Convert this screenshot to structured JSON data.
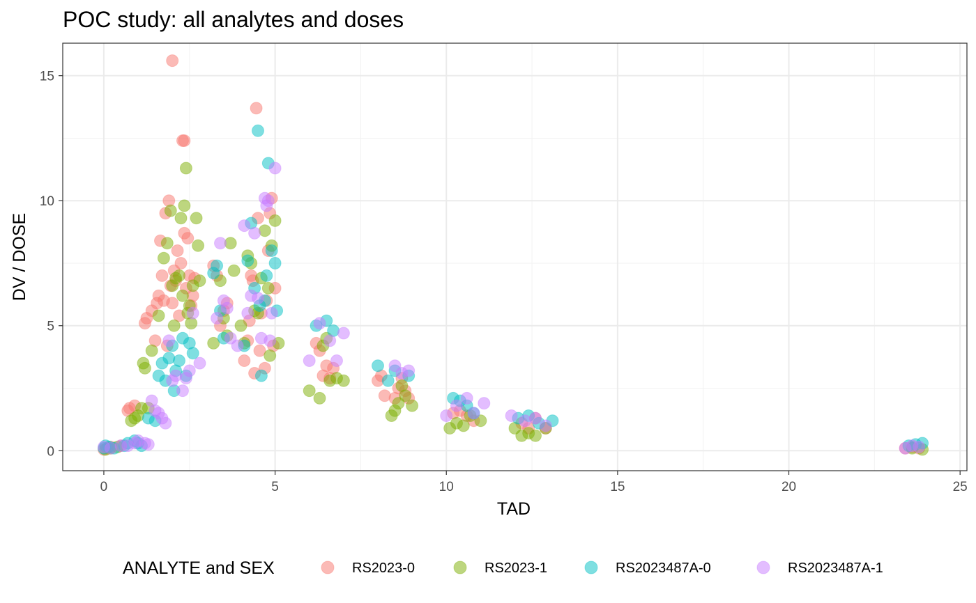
{
  "chart_data": {
    "type": "scatter",
    "title": "POC study: all analytes and doses",
    "xlabel": "TAD",
    "ylabel": "DV / DOSE",
    "xlim": [
      -1.2,
      25.2
    ],
    "ylim": [
      -0.8,
      16.3
    ],
    "x_ticks": [
      0,
      5,
      10,
      15,
      20,
      25
    ],
    "x_tick_labels": [
      "0",
      "5",
      "10",
      "15",
      "20",
      "25"
    ],
    "y_ticks": [
      0,
      5,
      10,
      15
    ],
    "y_tick_labels": [
      "0",
      "5",
      "10",
      "15"
    ],
    "grid": true,
    "legend": {
      "title": "ANALYTE and SEX",
      "position": "bottom"
    },
    "series": [
      {
        "name": "RS2023-0",
        "color": "#F8766D",
        "points": [
          [
            0.0,
            0.05
          ],
          [
            0.1,
            0.1
          ],
          [
            0.2,
            0.15
          ],
          [
            0.5,
            0.2
          ],
          [
            0.7,
            1.6
          ],
          [
            0.75,
            1.7
          ],
          [
            0.9,
            1.8
          ],
          [
            1.2,
            5.1
          ],
          [
            1.25,
            5.3
          ],
          [
            1.4,
            5.6
          ],
          [
            1.5,
            4.4
          ],
          [
            1.55,
            5.9
          ],
          [
            1.6,
            6.2
          ],
          [
            1.65,
            8.4
          ],
          [
            1.7,
            7.0
          ],
          [
            1.75,
            6.0
          ],
          [
            1.8,
            9.5
          ],
          [
            1.85,
            4.2
          ],
          [
            1.9,
            10.0
          ],
          [
            1.95,
            6.6
          ],
          [
            2.0,
            5.9
          ],
          [
            2.0,
            15.6
          ],
          [
            2.05,
            7.2
          ],
          [
            2.1,
            6.8
          ],
          [
            2.15,
            8.0
          ],
          [
            2.2,
            5.4
          ],
          [
            2.25,
            7.5
          ],
          [
            2.3,
            12.4
          ],
          [
            2.35,
            12.4
          ],
          [
            2.35,
            8.7
          ],
          [
            2.4,
            6.5
          ],
          [
            2.45,
            8.5
          ],
          [
            2.5,
            7.0
          ],
          [
            2.55,
            5.8
          ],
          [
            2.6,
            6.2
          ],
          [
            2.65,
            6.9
          ],
          [
            3.2,
            7.4
          ],
          [
            3.3,
            7.0
          ],
          [
            3.4,
            5.0
          ],
          [
            3.5,
            5.6
          ],
          [
            3.6,
            5.9
          ],
          [
            4.1,
            3.6
          ],
          [
            4.2,
            4.4
          ],
          [
            4.25,
            5.2
          ],
          [
            4.3,
            7.0
          ],
          [
            4.35,
            6.8
          ],
          [
            4.4,
            3.1
          ],
          [
            4.45,
            13.7
          ],
          [
            4.5,
            9.3
          ],
          [
            4.55,
            4.0
          ],
          [
            4.6,
            5.5
          ],
          [
            4.7,
            3.3
          ],
          [
            4.75,
            6.0
          ],
          [
            4.8,
            8.0
          ],
          [
            4.85,
            9.5
          ],
          [
            4.9,
            10.1
          ],
          [
            4.95,
            4.2
          ],
          [
            5.0,
            6.5
          ],
          [
            6.2,
            4.3
          ],
          [
            6.3,
            4.0
          ],
          [
            6.4,
            3.0
          ],
          [
            6.5,
            3.4
          ],
          [
            6.6,
            2.9
          ],
          [
            6.7,
            3.3
          ],
          [
            8.0,
            2.8
          ],
          [
            8.1,
            3.0
          ],
          [
            8.2,
            2.2
          ],
          [
            8.5,
            2.1
          ],
          [
            8.6,
            2.5
          ],
          [
            8.7,
            2.9
          ],
          [
            8.8,
            2.4
          ],
          [
            8.9,
            2.1
          ],
          [
            10.2,
            1.5
          ],
          [
            10.4,
            1.6
          ],
          [
            10.6,
            1.4
          ],
          [
            10.8,
            1.2
          ],
          [
            12.2,
            1.1
          ],
          [
            12.4,
            0.9
          ],
          [
            12.6,
            1.3
          ],
          [
            12.9,
            0.9
          ],
          [
            23.4,
            0.1
          ],
          [
            23.6,
            0.15
          ],
          [
            23.8,
            0.1
          ]
        ]
      },
      {
        "name": "RS2023-1",
        "color": "#7CAE00",
        "points": [
          [
            0.05,
            0.05
          ],
          [
            0.2,
            0.1
          ],
          [
            0.4,
            0.15
          ],
          [
            0.8,
            1.2
          ],
          [
            0.9,
            1.3
          ],
          [
            1.0,
            1.4
          ],
          [
            1.1,
            1.7
          ],
          [
            1.15,
            3.5
          ],
          [
            1.2,
            3.3
          ],
          [
            1.3,
            1.7
          ],
          [
            1.4,
            4.0
          ],
          [
            1.6,
            5.4
          ],
          [
            1.75,
            7.7
          ],
          [
            1.85,
            8.3
          ],
          [
            1.95,
            9.6
          ],
          [
            2.0,
            6.6
          ],
          [
            2.05,
            5.0
          ],
          [
            2.1,
            6.9
          ],
          [
            2.2,
            7.0
          ],
          [
            2.25,
            9.3
          ],
          [
            2.3,
            6.2
          ],
          [
            2.35,
            9.8
          ],
          [
            2.4,
            11.3
          ],
          [
            2.45,
            5.5
          ],
          [
            2.5,
            5.8
          ],
          [
            2.55,
            5.1
          ],
          [
            2.6,
            6.6
          ],
          [
            2.7,
            9.3
          ],
          [
            2.75,
            8.2
          ],
          [
            2.8,
            6.8
          ],
          [
            3.2,
            4.3
          ],
          [
            3.4,
            6.8
          ],
          [
            3.5,
            5.3
          ],
          [
            3.6,
            4.6
          ],
          [
            3.7,
            8.3
          ],
          [
            3.8,
            7.2
          ],
          [
            4.0,
            5.0
          ],
          [
            4.1,
            4.3
          ],
          [
            4.2,
            7.8
          ],
          [
            4.3,
            7.5
          ],
          [
            4.4,
            5.6
          ],
          [
            4.5,
            5.5
          ],
          [
            4.6,
            6.9
          ],
          [
            4.7,
            8.8
          ],
          [
            4.8,
            6.5
          ],
          [
            4.85,
            3.8
          ],
          [
            4.9,
            8.2
          ],
          [
            5.0,
            9.2
          ],
          [
            5.1,
            4.3
          ],
          [
            6.0,
            2.4
          ],
          [
            6.3,
            2.1
          ],
          [
            6.4,
            4.2
          ],
          [
            6.5,
            4.5
          ],
          [
            6.6,
            2.8
          ],
          [
            6.8,
            2.9
          ],
          [
            7.0,
            2.8
          ],
          [
            8.4,
            1.4
          ],
          [
            8.5,
            1.6
          ],
          [
            8.6,
            1.9
          ],
          [
            8.7,
            2.6
          ],
          [
            8.8,
            2.2
          ],
          [
            9.0,
            1.8
          ],
          [
            10.1,
            0.9
          ],
          [
            10.3,
            1.1
          ],
          [
            10.5,
            1.0
          ],
          [
            10.7,
            1.4
          ],
          [
            11.0,
            1.2
          ],
          [
            12.0,
            0.9
          ],
          [
            12.2,
            0.6
          ],
          [
            12.4,
            0.7
          ],
          [
            12.6,
            0.6
          ],
          [
            12.9,
            0.9
          ],
          [
            23.6,
            0.1
          ],
          [
            23.9,
            0.05
          ]
        ]
      },
      {
        "name": "RS2023487A-0",
        "color": "#00BFC4",
        "points": [
          [
            0.0,
            0.1
          ],
          [
            0.05,
            0.2
          ],
          [
            0.15,
            0.15
          ],
          [
            0.3,
            0.1
          ],
          [
            0.6,
            0.2
          ],
          [
            0.7,
            0.3
          ],
          [
            0.9,
            0.4
          ],
          [
            1.0,
            0.3
          ],
          [
            1.1,
            0.2
          ],
          [
            1.3,
            1.3
          ],
          [
            1.5,
            1.2
          ],
          [
            1.6,
            3.0
          ],
          [
            1.7,
            3.5
          ],
          [
            1.8,
            2.8
          ],
          [
            1.9,
            3.7
          ],
          [
            2.0,
            4.2
          ],
          [
            2.05,
            2.4
          ],
          [
            2.1,
            3.2
          ],
          [
            2.2,
            3.6
          ],
          [
            2.3,
            4.5
          ],
          [
            2.4,
            3.0
          ],
          [
            2.5,
            4.3
          ],
          [
            2.6,
            3.9
          ],
          [
            3.2,
            7.1
          ],
          [
            3.3,
            7.4
          ],
          [
            3.4,
            5.6
          ],
          [
            3.5,
            4.5
          ],
          [
            4.1,
            4.2
          ],
          [
            4.2,
            7.6
          ],
          [
            4.3,
            9.1
          ],
          [
            4.4,
            6.5
          ],
          [
            4.5,
            12.8
          ],
          [
            4.55,
            5.8
          ],
          [
            4.6,
            3.0
          ],
          [
            4.7,
            6.0
          ],
          [
            4.75,
            7.0
          ],
          [
            4.8,
            11.5
          ],
          [
            4.9,
            8.0
          ],
          [
            5.0,
            7.5
          ],
          [
            5.05,
            5.6
          ],
          [
            6.2,
            5.0
          ],
          [
            6.5,
            5.2
          ],
          [
            6.7,
            4.8
          ],
          [
            8.0,
            3.4
          ],
          [
            8.3,
            2.8
          ],
          [
            8.5,
            3.2
          ],
          [
            8.9,
            3.0
          ],
          [
            10.2,
            2.1
          ],
          [
            10.4,
            2.0
          ],
          [
            10.6,
            1.8
          ],
          [
            10.8,
            1.5
          ],
          [
            12.1,
            1.3
          ],
          [
            12.4,
            1.4
          ],
          [
            12.7,
            1.1
          ],
          [
            13.1,
            1.2
          ],
          [
            23.5,
            0.2
          ],
          [
            23.7,
            0.25
          ],
          [
            23.9,
            0.3
          ]
        ]
      },
      {
        "name": "RS2023487A-1",
        "color": "#C77CFF",
        "points": [
          [
            0.0,
            0.15
          ],
          [
            0.2,
            0.1
          ],
          [
            0.5,
            0.2
          ],
          [
            0.7,
            0.2
          ],
          [
            0.9,
            0.3
          ],
          [
            1.0,
            0.4
          ],
          [
            1.2,
            0.3
          ],
          [
            1.3,
            0.25
          ],
          [
            1.4,
            2.0
          ],
          [
            1.5,
            1.6
          ],
          [
            1.6,
            1.5
          ],
          [
            1.7,
            1.3
          ],
          [
            1.8,
            1.1
          ],
          [
            1.9,
            4.4
          ],
          [
            2.0,
            2.8
          ],
          [
            2.1,
            3.0
          ],
          [
            2.3,
            2.4
          ],
          [
            2.4,
            2.9
          ],
          [
            2.5,
            3.2
          ],
          [
            2.6,
            5.5
          ],
          [
            2.8,
            3.5
          ],
          [
            3.3,
            5.3
          ],
          [
            3.4,
            8.3
          ],
          [
            3.5,
            6.0
          ],
          [
            3.6,
            5.7
          ],
          [
            3.7,
            4.5
          ],
          [
            3.9,
            4.2
          ],
          [
            4.1,
            9.0
          ],
          [
            4.2,
            5.5
          ],
          [
            4.3,
            6.2
          ],
          [
            4.4,
            8.7
          ],
          [
            4.5,
            6.1
          ],
          [
            4.6,
            4.5
          ],
          [
            4.7,
            10.1
          ],
          [
            4.75,
            9.8
          ],
          [
            4.8,
            10.0
          ],
          [
            4.85,
            4.4
          ],
          [
            4.9,
            5.5
          ],
          [
            5.0,
            11.3
          ],
          [
            6.0,
            3.6
          ],
          [
            6.3,
            5.1
          ],
          [
            6.6,
            4.4
          ],
          [
            6.8,
            3.6
          ],
          [
            7.0,
            4.7
          ],
          [
            8.5,
            3.4
          ],
          [
            8.7,
            3.1
          ],
          [
            8.9,
            3.2
          ],
          [
            10.0,
            1.4
          ],
          [
            10.3,
            1.8
          ],
          [
            10.6,
            2.1
          ],
          [
            10.8,
            1.5
          ],
          [
            11.1,
            1.9
          ],
          [
            11.9,
            1.4
          ],
          [
            12.3,
            1.2
          ],
          [
            12.6,
            1.3
          ],
          [
            12.9,
            1.0
          ],
          [
            23.4,
            0.1
          ],
          [
            23.6,
            0.2
          ],
          [
            23.8,
            0.15
          ]
        ]
      }
    ]
  }
}
